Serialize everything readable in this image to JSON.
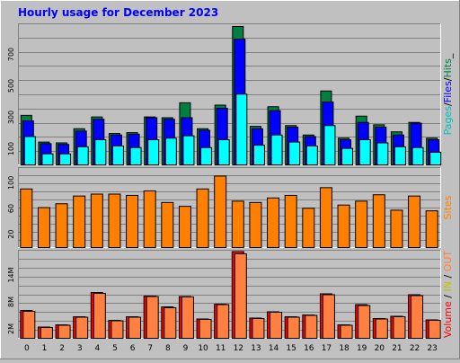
{
  "title": "Hourly usage for December 2023",
  "colors": {
    "background": "#c0c0c0",
    "plot_bg": "#c0c0c0",
    "grid": "#808080",
    "hits": "#008040",
    "files": "#0000ff",
    "pages": "#00ffff",
    "sites": "#ff8000",
    "volume": "#ff0000",
    "in": "#ffff00",
    "out": "#ff8040",
    "title": "#0000ff"
  },
  "chart_data": [
    {
      "type": "bar",
      "name": "Hits/Files/Pages",
      "ylabel_parts": [
        {
          "text": "Pages",
          "color": "#00c0c0"
        },
        {
          "text": "/",
          "color": "#000000"
        },
        {
          "text": "Files",
          "color": "#0000ff"
        },
        {
          "text": "/",
          "color": "#000000"
        },
        {
          "text": "Hits",
          "color": "#008040"
        },
        {
          "text": "_",
          "color": "#000000"
        }
      ],
      "ylim": [
        0,
        880
      ],
      "yticks": [
        100,
        300,
        500,
        700
      ],
      "series": [
        {
          "name": "Hits",
          "values": [
            315,
            145,
            140,
            230,
            305,
            200,
            205,
            305,
            300,
            395,
            230,
            380,
            880,
            245,
            370,
            250,
            190,
            470,
            170,
            310,
            255,
            210,
            270,
            170
          ]
        },
        {
          "name": "Files",
          "values": [
            280,
            135,
            130,
            215,
            290,
            190,
            195,
            300,
            290,
            300,
            220,
            360,
            800,
            230,
            345,
            240,
            180,
            400,
            160,
            270,
            240,
            190,
            265,
            160
          ]
        },
        {
          "name": "Pages",
          "values": [
            180,
            70,
            70,
            115,
            160,
            120,
            110,
            160,
            170,
            185,
            110,
            160,
            450,
            125,
            190,
            145,
            120,
            250,
            105,
            160,
            140,
            115,
            110,
            80
          ]
        }
      ]
    },
    {
      "type": "bar",
      "name": "Sites",
      "ylabel_parts": [
        {
          "text": "Sites",
          "color": "#ff8000"
        }
      ],
      "ylim": [
        0,
        120
      ],
      "yticks": [
        20,
        60,
        100
      ],
      "series": [
        {
          "name": "Sites",
          "values": [
            91,
            62,
            68,
            80,
            83,
            83,
            81,
            88,
            70,
            64,
            91,
            111,
            72,
            70,
            77,
            81,
            61,
            93,
            66,
            72,
            82,
            58,
            80,
            57
          ]
        }
      ]
    },
    {
      "type": "bar",
      "name": "Volume",
      "ylabel_parts": [
        {
          "text": "Volume",
          "color": "#ff0000"
        },
        {
          "text": " / ",
          "color": "#000000"
        },
        {
          "text": "IN",
          "color": "#c0c000"
        },
        {
          "text": " / ",
          "color": "#000000"
        },
        {
          "text": "OUT",
          "color": "#ff8040"
        }
      ],
      "ylim": [
        0,
        19
      ],
      "yticks": [
        2,
        8,
        14
      ],
      "yticklabels": [
        "2M",
        "8M",
        "14M"
      ],
      "series": [
        {
          "name": "Volume",
          "values": [
            6.2,
            2.5,
            3.0,
            4.8,
            10.2,
            4.0,
            4.8,
            9.4,
            7.0,
            9.3,
            4.3,
            7.6,
            19.3,
            4.5,
            5.9,
            4.8,
            5.2,
            9.9,
            3.0,
            7.5,
            4.4,
            4.9,
            9.7,
            4.1
          ]
        },
        {
          "name": "OUT",
          "values": [
            6.0,
            2.4,
            2.9,
            4.7,
            10.0,
            3.9,
            4.7,
            9.3,
            6.8,
            9.2,
            4.2,
            7.5,
            18.8,
            4.4,
            5.8,
            4.7,
            5.1,
            9.7,
            2.9,
            7.3,
            4.3,
            4.8,
            9.5,
            4.0
          ]
        }
      ]
    }
  ],
  "xticks": [
    "0",
    "1",
    "2",
    "3",
    "4",
    "5",
    "6",
    "7",
    "8",
    "9",
    "10",
    "11",
    "12",
    "13",
    "14",
    "15",
    "16",
    "17",
    "18",
    "19",
    "20",
    "21",
    "22",
    "23"
  ]
}
